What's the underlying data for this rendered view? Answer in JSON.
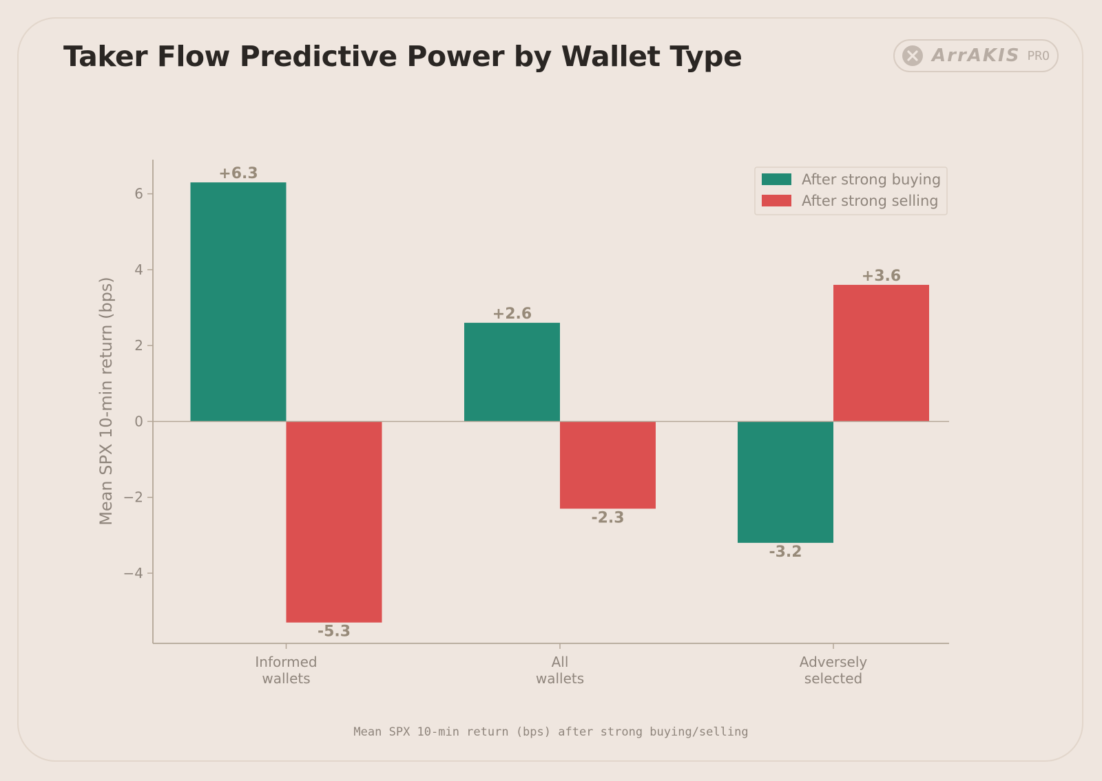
{
  "title": "Taker Flow Predictive Power by Wallet Type",
  "logo": {
    "name": "ArrAKIS",
    "badge": "PRO",
    "icon": "x-circle-icon"
  },
  "caption": "Mean SPX 10-min return (bps) after strong buying/selling",
  "colors": {
    "buy": "#228a74",
    "sell": "#dc5050",
    "text": "#8f857c",
    "axis": "#b3a697",
    "label": "#978a79"
  },
  "chart_data": {
    "type": "bar",
    "title": "Taker Flow Predictive Power by Wallet Type",
    "xlabel": "",
    "ylabel": "Mean SPX 10-min return (bps)",
    "categories": [
      [
        "Informed",
        "wallets"
      ],
      [
        "All",
        "wallets"
      ],
      [
        "Adversely",
        "selected"
      ]
    ],
    "series": [
      {
        "name": "After strong buying",
        "color": "#228a74",
        "values": [
          6.3,
          2.6,
          -3.2
        ],
        "labels": [
          "+6.3",
          "+2.6",
          "-3.2"
        ]
      },
      {
        "name": "After strong selling",
        "color": "#dc5050",
        "values": [
          -5.3,
          -2.3,
          3.6
        ],
        "labels": [
          "-5.3",
          "-2.3",
          "+3.6"
        ]
      }
    ],
    "ylim": [
      -5.85,
      6.9
    ],
    "yticks": [
      -4,
      -2,
      0,
      2,
      4,
      6
    ],
    "ytick_labels": [
      "−4",
      "−2",
      "0",
      "2",
      "4",
      "6"
    ],
    "legend": "top-right",
    "grid": false
  }
}
